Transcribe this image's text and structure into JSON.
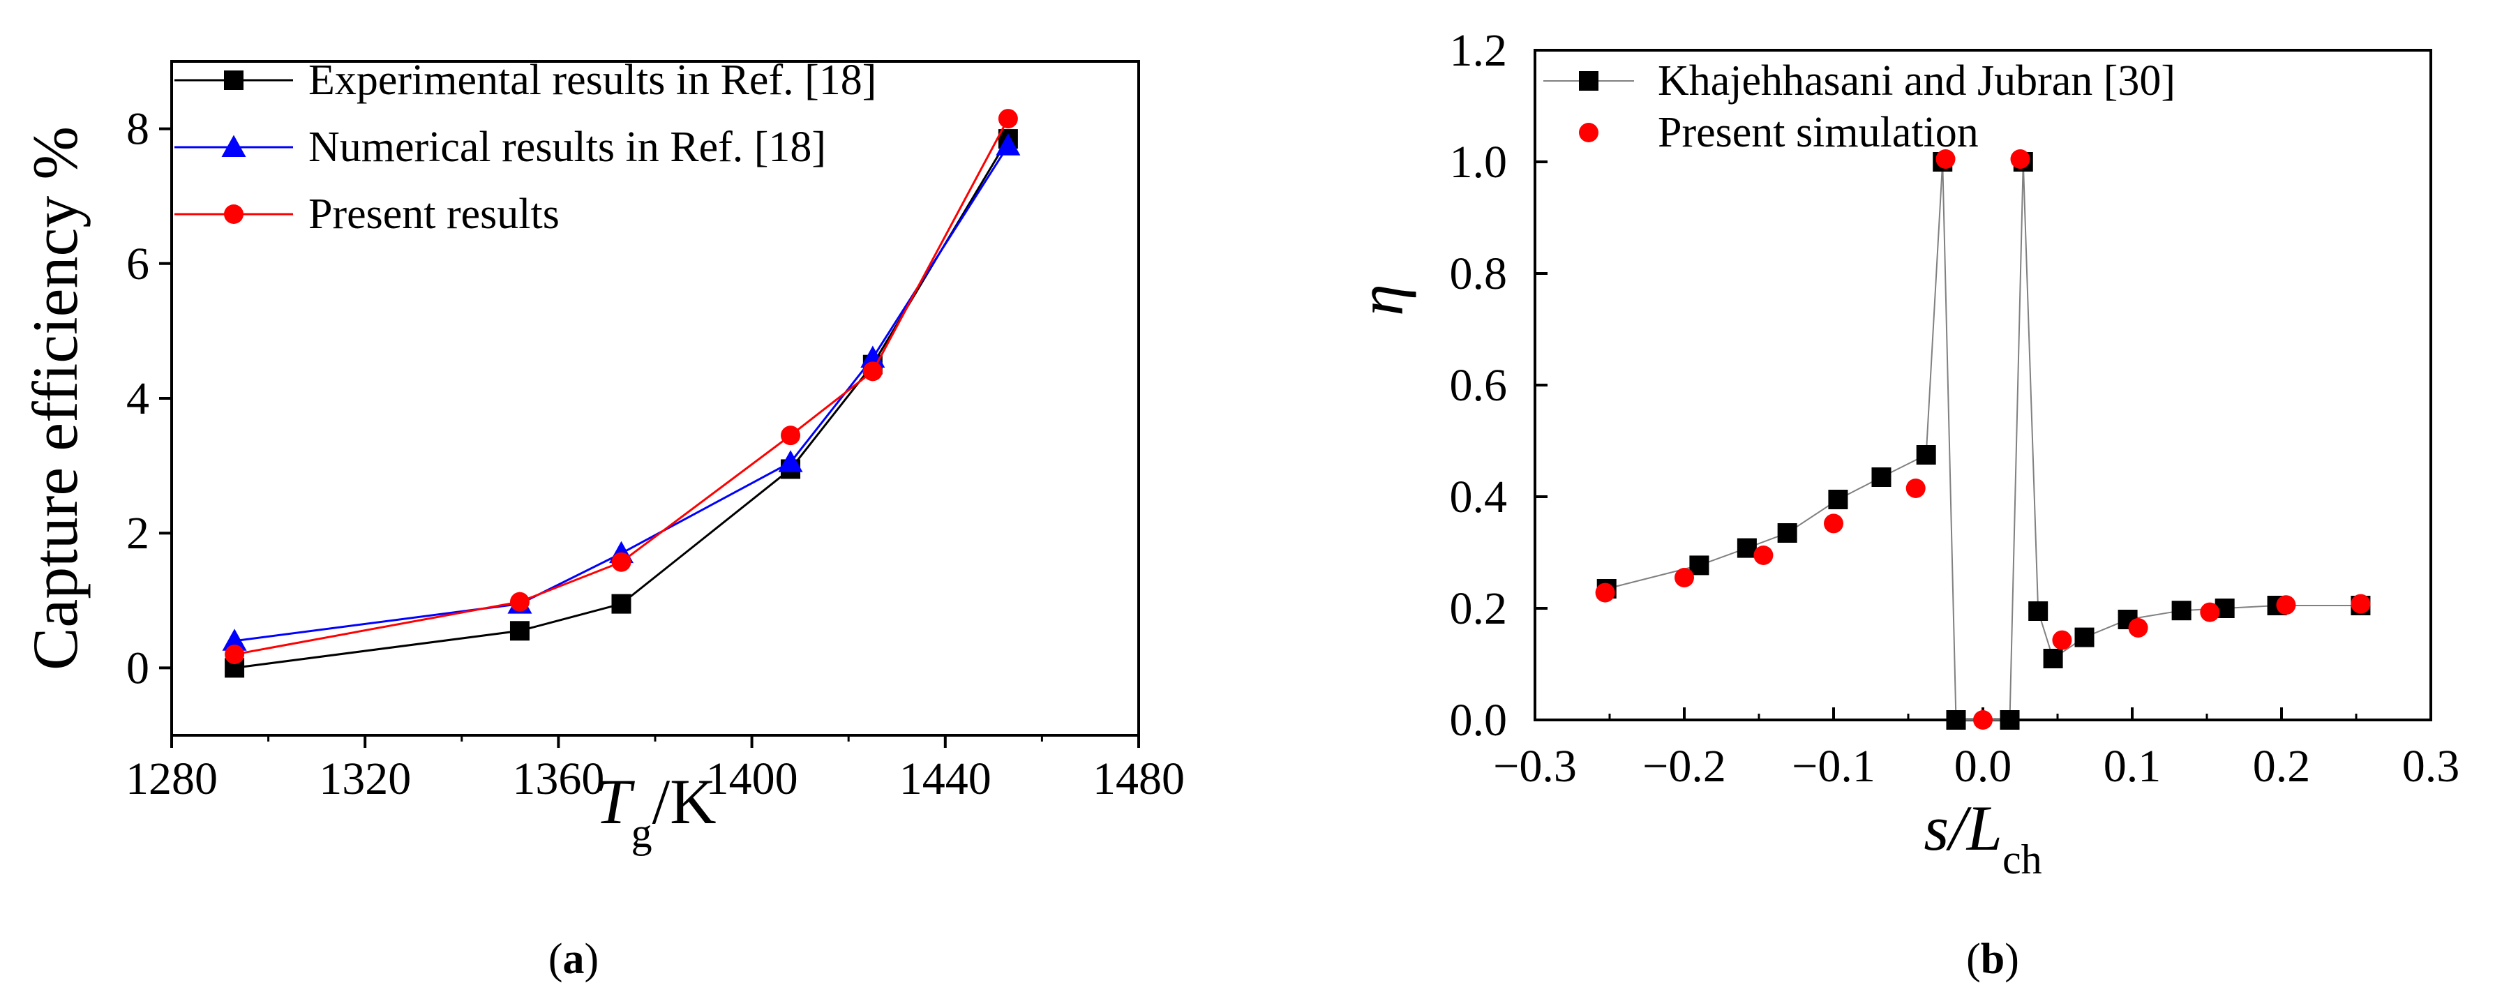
{
  "chart_data": [
    {
      "type": "line",
      "panel_label": {
        "open": "(",
        "letter": "a",
        "close": ")"
      },
      "xlabel": {
        "main": "T",
        "sub": "g",
        "suffix": "/K"
      },
      "ylabel": "Capture efficiency %",
      "xlim": [
        1280,
        1480
      ],
      "ylim": [
        -1,
        9
      ],
      "xticks": [
        1280,
        1320,
        1360,
        1400,
        1440,
        1480
      ],
      "xtick_labels": [
        "1280",
        "1320",
        "1360",
        "1400",
        "1440",
        "1480"
      ],
      "yticks": [
        0,
        2,
        4,
        6,
        8
      ],
      "ytick_labels": [
        "0",
        "2",
        "4",
        "6",
        "8"
      ],
      "legend_position": "top-left",
      "series": [
        {
          "name": "Experimental results in Ref. [18]",
          "color": "#000000",
          "marker": "square",
          "x": [
            1293,
            1352,
            1373,
            1408,
            1425,
            1453
          ],
          "y": [
            0.0,
            0.55,
            0.95,
            2.95,
            4.5,
            7.85
          ]
        },
        {
          "name": "Numerical results in Ref. [18]",
          "color": "#0000ff",
          "marker": "triangle",
          "x": [
            1293,
            1352,
            1373,
            1408,
            1425,
            1453
          ],
          "y": [
            0.4,
            0.95,
            1.7,
            3.05,
            4.6,
            7.75
          ]
        },
        {
          "name": "Present results",
          "color": "#ff0000",
          "marker": "circle",
          "x": [
            1293,
            1352,
            1373,
            1408,
            1425,
            1453
          ],
          "y": [
            0.2,
            0.98,
            1.57,
            3.45,
            4.4,
            8.15
          ]
        }
      ]
    },
    {
      "type": "line",
      "panel_label": {
        "open": "(",
        "letter": "b",
        "close": ")"
      },
      "xlabel": {
        "main": "s/L",
        "sub": "ch",
        "suffix": ""
      },
      "ylabel": "η",
      "xlim": [
        -0.3,
        0.3
      ],
      "ylim": [
        0.0,
        1.2
      ],
      "xticks": [
        -0.3,
        -0.2,
        -0.1,
        0.0,
        0.1,
        0.2,
        0.3
      ],
      "xtick_labels": [
        "−0.3",
        "−0.2",
        "−0.1",
        "0.0",
        "0.1",
        "0.2",
        "0.3"
      ],
      "yticks": [
        0.0,
        0.2,
        0.4,
        0.6,
        0.8,
        1.0,
        1.2
      ],
      "ytick_labels": [
        "0.0",
        "0.2",
        "0.4",
        "0.6",
        "0.8",
        "1.0",
        "1.2"
      ],
      "legend_position": "top-left",
      "series": [
        {
          "name": "Khajehhasani and Jubran [30]",
          "color": "#000000",
          "line_color": "#808080",
          "marker": "square",
          "x": [
            -0.252,
            -0.19,
            -0.158,
            -0.131,
            -0.097,
            -0.068,
            -0.038,
            -0.027,
            -0.018,
            0.018,
            0.027,
            0.037,
            0.047,
            0.068,
            0.097,
            0.133,
            0.162,
            0.197,
            0.253
          ],
          "y": [
            0.235,
            0.277,
            0.308,
            0.335,
            0.395,
            0.435,
            0.475,
            1.0,
            0.0,
            0.0,
            1.0,
            0.195,
            0.11,
            0.148,
            0.18,
            0.196,
            0.2,
            0.205,
            0.205
          ]
        },
        {
          "name": "Present simulation",
          "color": "#ff0000",
          "marker": "circle",
          "no_line": true,
          "x": [
            -0.253,
            -0.2,
            -0.147,
            -0.1,
            -0.045,
            -0.025,
            0.0,
            0.025,
            0.053,
            0.104,
            0.152,
            0.203,
            0.253
          ],
          "y": [
            0.228,
            0.255,
            0.295,
            0.352,
            0.415,
            1.005,
            0.0,
            1.005,
            0.143,
            0.165,
            0.193,
            0.206,
            0.208
          ]
        }
      ]
    }
  ]
}
